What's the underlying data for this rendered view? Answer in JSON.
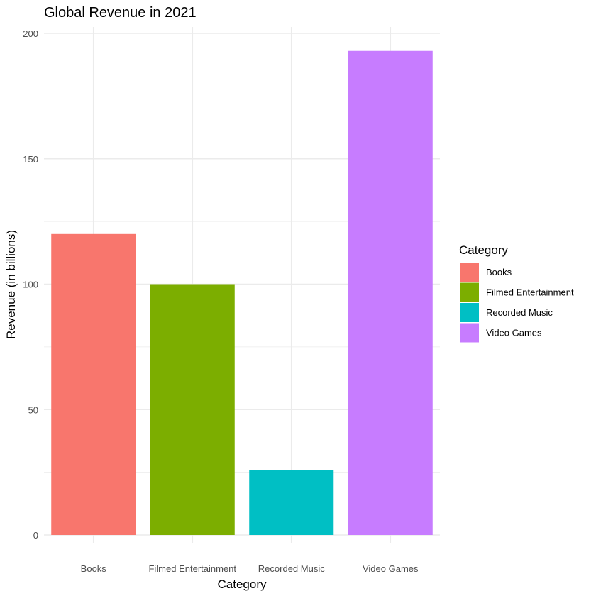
{
  "chart_data": {
    "type": "bar",
    "title": "Global Revenue in 2021",
    "xlabel": "Category",
    "ylabel": "Revenue (in billions)",
    "categories": [
      "Books",
      "Filmed Entertainment",
      "Recorded Music",
      "Video Games"
    ],
    "values": [
      120,
      100,
      26,
      193
    ],
    "colors": [
      "#F8766D",
      "#7CAE00",
      "#00BFC4",
      "#C77CFF"
    ],
    "ylim": [
      0,
      200
    ],
    "yticks": [
      0,
      50,
      100,
      150,
      200
    ],
    "grid": true,
    "legend": {
      "title": "Category",
      "position": "right",
      "entries": [
        "Books",
        "Filmed Entertainment",
        "Recorded Music",
        "Video Games"
      ]
    }
  }
}
